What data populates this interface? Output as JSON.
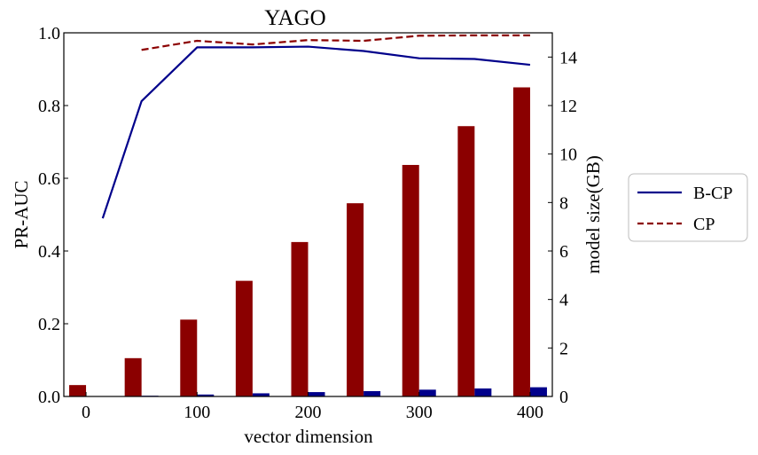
{
  "chart_data": {
    "type": "bar+line",
    "title": "YAGO",
    "xlabel": "vector dimension",
    "ylabel_left": "PR-AUC",
    "ylabel_right": "model size(GB)",
    "xlim": [
      -20,
      420
    ],
    "ylim_left": [
      0,
      1.0
    ],
    "ylim_right": [
      0,
      15
    ],
    "x_ticks": [
      "0",
      "100",
      "200",
      "300",
      "400"
    ],
    "x_tick_values": [
      0,
      100,
      200,
      300,
      400
    ],
    "y_left_ticks": [
      "0.0",
      "0.2",
      "0.4",
      "0.6",
      "0.8",
      "1.0"
    ],
    "y_left_tick_values": [
      0,
      0.2,
      0.4,
      0.6,
      0.8,
      1.0
    ],
    "y_right_ticks": [
      "0",
      "2",
      "4",
      "6",
      "8",
      "10",
      "12",
      "14"
    ],
    "y_right_tick_values": [
      0,
      2,
      4,
      6,
      8,
      10,
      12,
      14
    ],
    "bar_dimensions": [
      0,
      50,
      100,
      150,
      200,
      250,
      300,
      350,
      400
    ],
    "bar_series": [
      {
        "name": "CP model size",
        "axis": "right",
        "color": "#8b0000",
        "values": [
          0.47,
          1.58,
          3.17,
          4.77,
          6.37,
          7.97,
          9.55,
          11.15,
          12.75
        ]
      },
      {
        "name": "B-CP model size",
        "axis": "right",
        "color": "#00008b",
        "values": [
          0.0,
          0.03,
          0.08,
          0.13,
          0.18,
          0.22,
          0.28,
          0.33,
          0.38
        ]
      }
    ],
    "line_series": [
      {
        "name": "B-CP",
        "axis": "left",
        "color": "#00008b",
        "style": "solid",
        "x": [
          15,
          50,
          100,
          150,
          200,
          250,
          300,
          350,
          400
        ],
        "y": [
          0.49,
          0.812,
          0.96,
          0.96,
          0.962,
          0.95,
          0.93,
          0.928,
          0.912
        ]
      },
      {
        "name": "CP",
        "axis": "left",
        "color": "#8b0000",
        "style": "dashed",
        "x": [
          50,
          100,
          150,
          200,
          250,
          300,
          350,
          400
        ],
        "y": [
          0.953,
          0.978,
          0.968,
          0.98,
          0.978,
          0.992,
          0.993,
          0.993
        ]
      }
    ],
    "legend": {
      "placement": "right-outside",
      "entries": [
        {
          "label": "B-CP",
          "color": "#00008b",
          "style": "solid"
        },
        {
          "label": "CP",
          "color": "#8b0000",
          "style": "dashed"
        }
      ]
    }
  }
}
